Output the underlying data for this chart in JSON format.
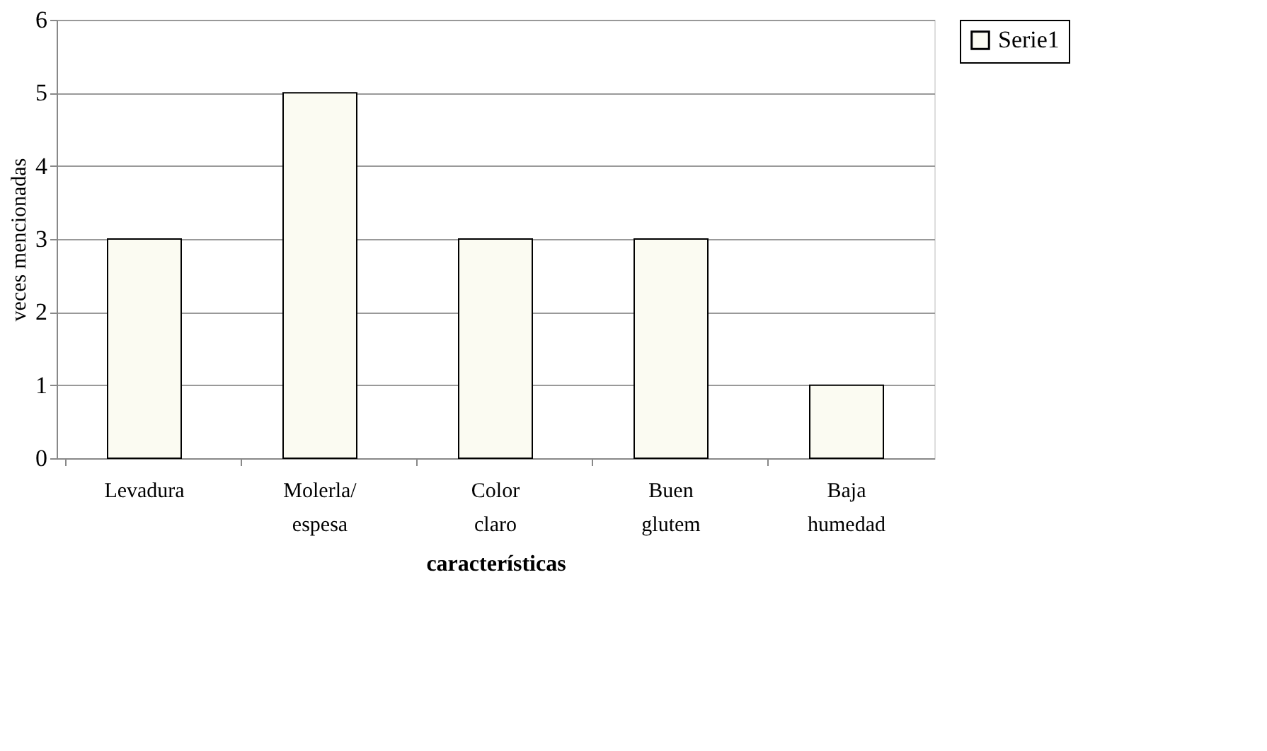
{
  "chart_data": {
    "type": "bar",
    "xlabel": "características",
    "ylabel": "veces mencionadas",
    "categories": [
      "Levadura",
      "Molerla/ espesa",
      "Color claro",
      "Buen glutem",
      "Baja humedad"
    ],
    "series": [
      {
        "name": "Serie1",
        "color": "#fbfbf2",
        "values": [
          3,
          5,
          3,
          3,
          1
        ]
      }
    ],
    "ylim": [
      0,
      6
    ],
    "yticks": [
      0,
      1,
      2,
      3,
      4,
      5,
      6
    ],
    "grid": "y",
    "legend": "right"
  }
}
